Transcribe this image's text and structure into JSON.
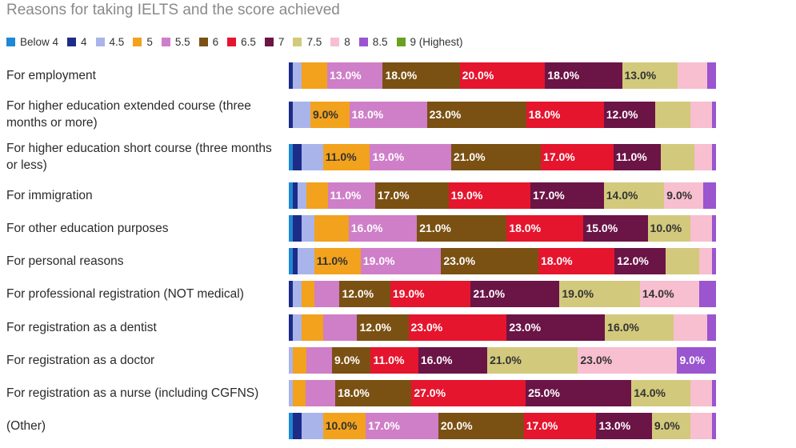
{
  "chart_data": {
    "type": "bar",
    "orientation": "horizontal",
    "stacked": true,
    "title": "Reasons for taking IELTS and the score achieved",
    "xlabel": "",
    "ylabel": "",
    "xlim": [
      0,
      100
    ],
    "legend_position": "top-left",
    "series_names": [
      "Below 4",
      "4",
      "4.5",
      "5",
      "5.5",
      "6",
      "6.5",
      "7",
      "7.5",
      "8",
      "8.5",
      "9 (Highest)"
    ],
    "colors": [
      "#1f88d4",
      "#1d2c88",
      "#a9b4ea",
      "#f2a21c",
      "#cf7ec8",
      "#7a5113",
      "#e5152e",
      "#6b1446",
      "#d2c97c",
      "#f7bfd0",
      "#9a55cf",
      "#6aa121"
    ],
    "text_colors": [
      "#ffffff",
      "#ffffff",
      "#333333",
      "#333333",
      "#ffffff",
      "#ffffff",
      "#ffffff",
      "#ffffff",
      "#333333",
      "#333333",
      "#ffffff",
      "#ffffff"
    ],
    "categories": [
      "For employment",
      "For higher education extended course (three months or more)",
      "For higher education short course (three months or less)",
      "For immigration",
      "For other education purposes",
      "For personal reasons",
      "For professional registration (NOT medical)",
      "For registration as a dentist",
      "For registration as a doctor",
      "For registration as a nurse (including CGFNS)",
      "(Other)"
    ],
    "rows": [
      {
        "values": [
          0,
          1,
          2,
          6,
          13,
          18,
          20,
          18,
          13,
          7,
          2,
          0
        ],
        "labels": [
          "",
          "",
          "",
          "",
          "13.0%",
          "18.0%",
          "20.0%",
          "18.0%",
          "13.0%",
          "",
          "",
          ""
        ]
      },
      {
        "values": [
          0,
          1,
          4,
          9,
          18,
          23,
          18,
          12,
          8,
          5,
          1,
          0
        ],
        "labels": [
          "",
          "",
          "",
          "9.0%",
          "18.0%",
          "23.0%",
          "18.0%",
          "12.0%",
          "",
          "",
          "",
          ""
        ]
      },
      {
        "values": [
          1,
          2,
          5,
          11,
          19,
          21,
          17,
          11,
          8,
          4,
          1,
          0
        ],
        "labels": [
          "",
          "",
          "",
          "11.0%",
          "19.0%",
          "21.0%",
          "17.0%",
          "11.0%",
          "",
          "",
          "",
          ""
        ]
      },
      {
        "values": [
          1,
          1,
          2,
          5,
          11,
          17,
          19,
          17,
          14,
          9,
          3,
          0
        ],
        "labels": [
          "",
          "",
          "",
          "",
          "11.0%",
          "17.0%",
          "19.0%",
          "17.0%",
          "14.0%",
          "9.0%",
          "",
          ""
        ]
      },
      {
        "values": [
          1,
          2,
          3,
          8,
          16,
          21,
          18,
          15,
          10,
          5,
          1,
          0
        ],
        "labels": [
          "",
          "",
          "",
          "",
          "16.0%",
          "21.0%",
          "18.0%",
          "15.0%",
          "10.0%",
          "",
          "",
          ""
        ]
      },
      {
        "values": [
          1,
          1,
          4,
          11,
          19,
          23,
          18,
          12,
          8,
          3,
          1,
          0
        ],
        "labels": [
          "",
          "",
          "",
          "11.0%",
          "19.0%",
          "23.0%",
          "18.0%",
          "12.0%",
          "",
          "",
          "",
          ""
        ]
      },
      {
        "values": [
          0,
          1,
          2,
          3,
          6,
          12,
          19,
          21,
          19,
          14,
          4,
          0
        ],
        "labels": [
          "",
          "",
          "",
          "",
          "",
          "12.0%",
          "19.0%",
          "21.0%",
          "19.0%",
          "14.0%",
          "",
          ""
        ]
      },
      {
        "values": [
          0,
          1,
          2,
          5,
          8,
          12,
          23,
          23,
          16,
          8,
          2,
          0
        ],
        "labels": [
          "",
          "",
          "",
          "",
          "",
          "12.0%",
          "23.0%",
          "23.0%",
          "16.0%",
          "",
          "",
          ""
        ]
      },
      {
        "values": [
          0,
          0,
          1,
          3,
          6,
          9,
          11,
          16,
          21,
          23,
          9,
          0
        ],
        "labels": [
          "",
          "",
          "",
          "",
          "",
          "9.0%",
          "11.0%",
          "16.0%",
          "21.0%",
          "23.0%",
          "9.0%",
          ""
        ]
      },
      {
        "values": [
          0,
          0,
          1,
          3,
          7,
          18,
          27,
          25,
          14,
          5,
          1,
          0
        ],
        "labels": [
          "",
          "",
          "",
          "",
          "",
          "18.0%",
          "27.0%",
          "25.0%",
          "14.0%",
          "",
          "",
          ""
        ]
      },
      {
        "values": [
          1,
          2,
          5,
          10,
          17,
          20,
          17,
          13,
          9,
          5,
          1,
          0
        ],
        "labels": [
          "",
          "",
          "",
          "10.0%",
          "17.0%",
          "20.0%",
          "17.0%",
          "13.0%",
          "9.0%",
          "",
          "",
          ""
        ]
      }
    ]
  }
}
